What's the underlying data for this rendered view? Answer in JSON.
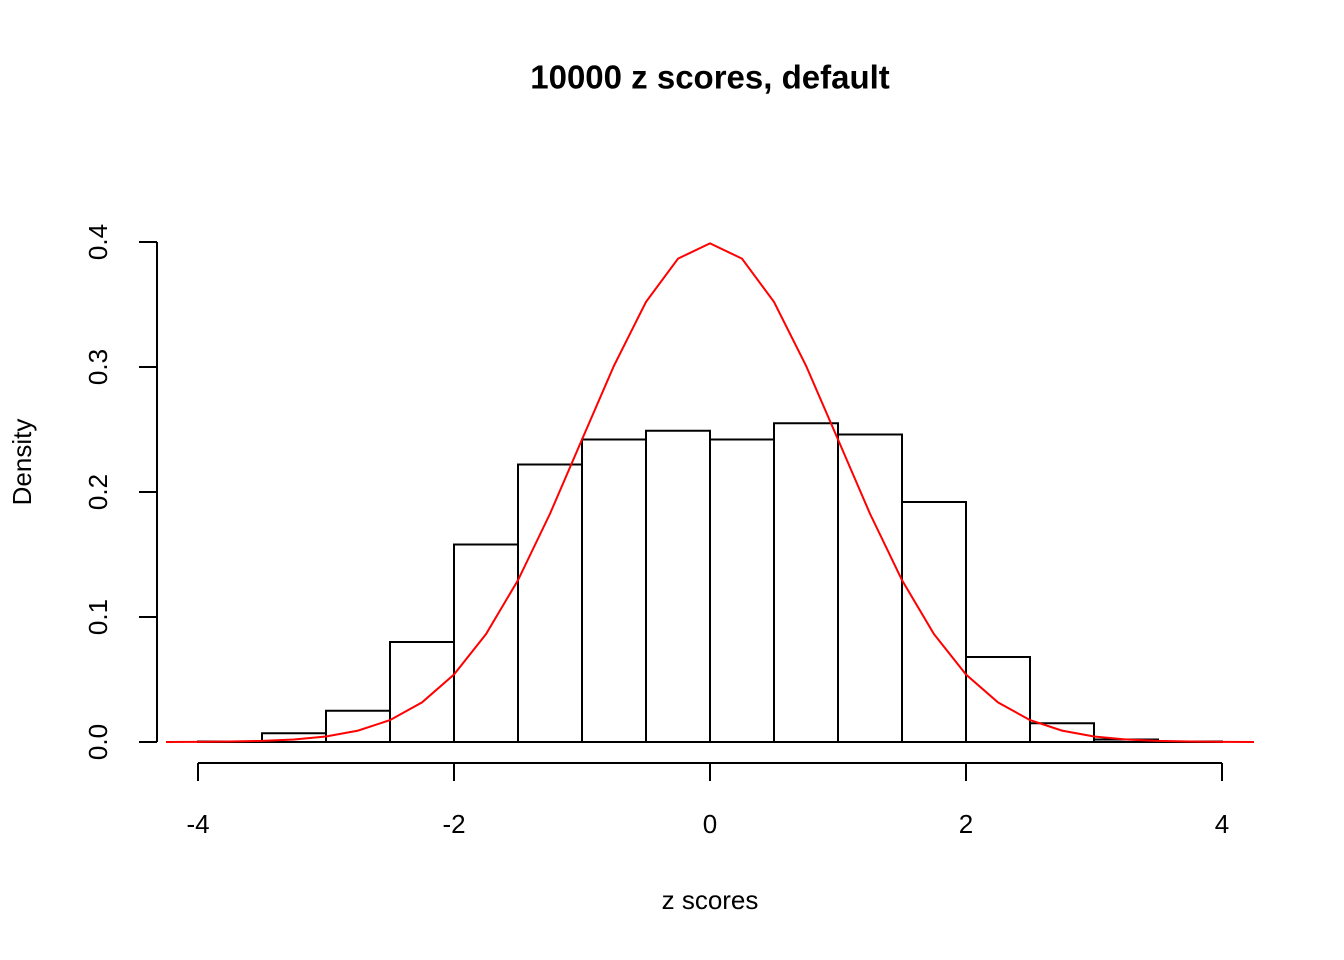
{
  "chart_data": {
    "type": "histogram",
    "title": "10000 z scores, default",
    "xlabel": "z scores",
    "ylabel": "Density",
    "bins": [
      -4,
      -3.5,
      -3,
      -2.5,
      -2,
      -1.5,
      -1,
      -0.5,
      0,
      0.5,
      1,
      1.5,
      2,
      2.5,
      3,
      3.5,
      4
    ],
    "values": [
      0.0004,
      0.007,
      0.025,
      0.08,
      0.158,
      0.222,
      0.242,
      0.249,
      0.242,
      0.255,
      0.246,
      0.192,
      0.068,
      0.015,
      0.002,
      0.0004
    ],
    "color": "#ffffff",
    "edge_color": "#000000",
    "xlim": [
      -4,
      4
    ],
    "xticks": [
      -4,
      -2,
      0,
      2,
      4
    ],
    "ylim": [
      0,
      0.4
    ],
    "yticks": [
      {
        "value": 0,
        "label": "0.0"
      },
      0.1,
      0.2,
      0.3,
      0.4
    ],
    "curve": {
      "type": "line",
      "color": "#ff0000",
      "x": [
        -4.25,
        -4,
        -3.75,
        -3.5,
        -3.25,
        -3,
        -2.75,
        -2.5,
        -2.25,
        -2,
        -1.75,
        -1.5,
        -1.25,
        -1,
        -0.75,
        -0.5,
        -0.25,
        0,
        0.25,
        0.5,
        0.75,
        1,
        1.25,
        1.5,
        1.75,
        2,
        2.25,
        2.5,
        2.75,
        3,
        3.25,
        3.5,
        3.75,
        4,
        4.25
      ],
      "values": [
        0.0,
        0.0001,
        0.0004,
        0.0009,
        0.002,
        0.0044,
        0.0091,
        0.0175,
        0.0317,
        0.054,
        0.0863,
        0.1295,
        0.1826,
        0.242,
        0.3011,
        0.3521,
        0.3867,
        0.3989,
        0.3867,
        0.3521,
        0.3011,
        0.242,
        0.1826,
        0.1295,
        0.0863,
        0.054,
        0.0317,
        0.0175,
        0.0091,
        0.0044,
        0.002,
        0.0009,
        0.0004,
        0.0001,
        0.0
      ]
    }
  }
}
